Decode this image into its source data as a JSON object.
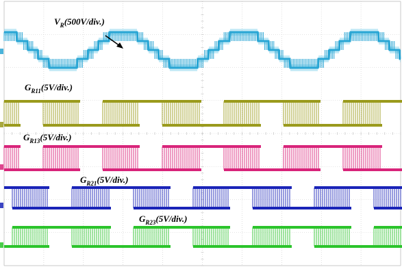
{
  "chart_data": {
    "type": "line",
    "title": "",
    "xlabel": "",
    "ylabel": "",
    "grid": true,
    "grid_divisions": {
      "horizontal": 10,
      "vertical": 8
    },
    "series": [
      {
        "name": "V_R",
        "label_main": "V",
        "label_sub": "R",
        "label_scale": "(500V/div.)",
        "color": "#2aa6d4",
        "kind": "multilevel-pwm",
        "periods": 2.35,
        "levels": 5
      },
      {
        "name": "G_R11",
        "label_main": "G",
        "label_sub": "R11",
        "label_scale": "(5V/div.)",
        "color": "#9a9a1c",
        "kind": "gate-pwm",
        "phase_offset": 0.0
      },
      {
        "name": "G_R13",
        "label_main": "G",
        "label_sub": "R13",
        "label_scale": "(5V/div.)",
        "color": "#d8247a",
        "kind": "gate-pwm",
        "phase_offset": 0.5
      },
      {
        "name": "G_R21",
        "label_main": "G",
        "label_sub": "R21",
        "label_scale": "(5V/div.)",
        "color": "#1a24b8",
        "kind": "gate-pwm",
        "phase_offset": 0.25
      },
      {
        "name": "G_R23",
        "label_main": "G",
        "label_sub": "R23",
        "label_scale": "(5V/div.)",
        "color": "#2bc42b",
        "kind": "gate-pwm",
        "phase_offset": 0.75
      }
    ]
  }
}
